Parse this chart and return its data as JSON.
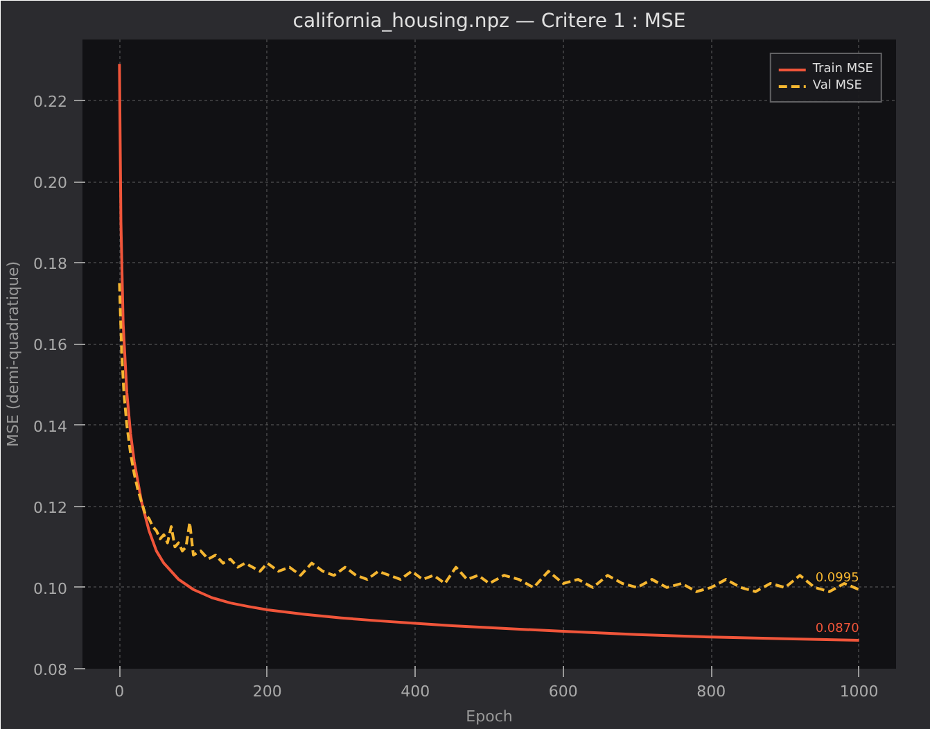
{
  "chart_data": {
    "type": "line",
    "title": "california_housing.npz — Critere 1 : MSE",
    "xlabel": "Epoch",
    "ylabel": "MSE (demi-quadratique)",
    "xlim": [
      -50,
      1050
    ],
    "ylim": [
      0.08,
      0.235
    ],
    "xticks": [
      0,
      200,
      400,
      600,
      800,
      1000
    ],
    "yticks": [
      {
        "value": 0.08,
        "label": "0.08"
      },
      {
        "value": 0.1,
        "label": "0.10"
      },
      {
        "value": 0.12,
        "label": "0.12"
      },
      {
        "value": 0.14,
        "label": "0.14"
      },
      {
        "value": 0.16,
        "label": "0.16"
      },
      {
        "value": 0.18,
        "label": "0.18"
      },
      {
        "value": 0.2,
        "label": "0.20"
      },
      {
        "value": 0.22,
        "label": "0.22"
      }
    ],
    "grid": true,
    "legend": "top right",
    "series": [
      {
        "name": "Train MSE",
        "color": "#f0553a",
        "line_style": "solid",
        "x": [
          0,
          2,
          5,
          10,
          15,
          20,
          30,
          40,
          50,
          60,
          80,
          100,
          125,
          150,
          175,
          200,
          250,
          300,
          350,
          400,
          450,
          500,
          600,
          700,
          800,
          900,
          1000
        ],
        "values": [
          0.229,
          0.19,
          0.165,
          0.148,
          0.138,
          0.131,
          0.121,
          0.114,
          0.109,
          0.106,
          0.102,
          0.0995,
          0.0975,
          0.0962,
          0.0953,
          0.0945,
          0.0934,
          0.0925,
          0.0918,
          0.0912,
          0.0906,
          0.0901,
          0.0892,
          0.0884,
          0.0878,
          0.0874,
          0.087
        ]
      },
      {
        "name": "Val MSE",
        "color": "#f5b631",
        "line_style": "dashed",
        "x": [
          0,
          3,
          6,
          10,
          15,
          20,
          25,
          30,
          35,
          40,
          45,
          50,
          55,
          60,
          65,
          70,
          75,
          80,
          85,
          90,
          95,
          100,
          110,
          120,
          130,
          140,
          150,
          160,
          170,
          180,
          190,
          200,
          215,
          230,
          245,
          260,
          275,
          290,
          305,
          320,
          335,
          350,
          365,
          380,
          395,
          410,
          425,
          440,
          455,
          470,
          485,
          500,
          520,
          540,
          560,
          580,
          600,
          620,
          640,
          660,
          680,
          700,
          720,
          740,
          760,
          780,
          800,
          820,
          840,
          860,
          880,
          900,
          920,
          940,
          960,
          980,
          1000
        ],
        "values": [
          0.175,
          0.158,
          0.148,
          0.14,
          0.133,
          0.128,
          0.124,
          0.121,
          0.118,
          0.117,
          0.115,
          0.114,
          0.112,
          0.113,
          0.111,
          0.115,
          0.11,
          0.111,
          0.109,
          0.11,
          0.116,
          0.108,
          0.109,
          0.107,
          0.108,
          0.106,
          0.107,
          0.105,
          0.106,
          0.105,
          0.104,
          0.106,
          0.104,
          0.105,
          0.103,
          0.106,
          0.104,
          0.103,
          0.105,
          0.103,
          0.102,
          0.104,
          0.103,
          0.102,
          0.104,
          0.102,
          0.103,
          0.101,
          0.105,
          0.102,
          0.103,
          0.101,
          0.103,
          0.102,
          0.1,
          0.104,
          0.101,
          0.102,
          0.1,
          0.103,
          0.101,
          0.1,
          0.102,
          0.1,
          0.101,
          0.099,
          0.1,
          0.102,
          0.1,
          0.099,
          0.101,
          0.1,
          0.103,
          0.1,
          0.099,
          0.101,
          0.0995
        ]
      }
    ],
    "annotations": [
      {
        "text": "0.0995",
        "x": 1000,
        "y": 0.0995
      },
      {
        "text": "0.0870",
        "x": 1000,
        "y": 0.087
      }
    ]
  }
}
